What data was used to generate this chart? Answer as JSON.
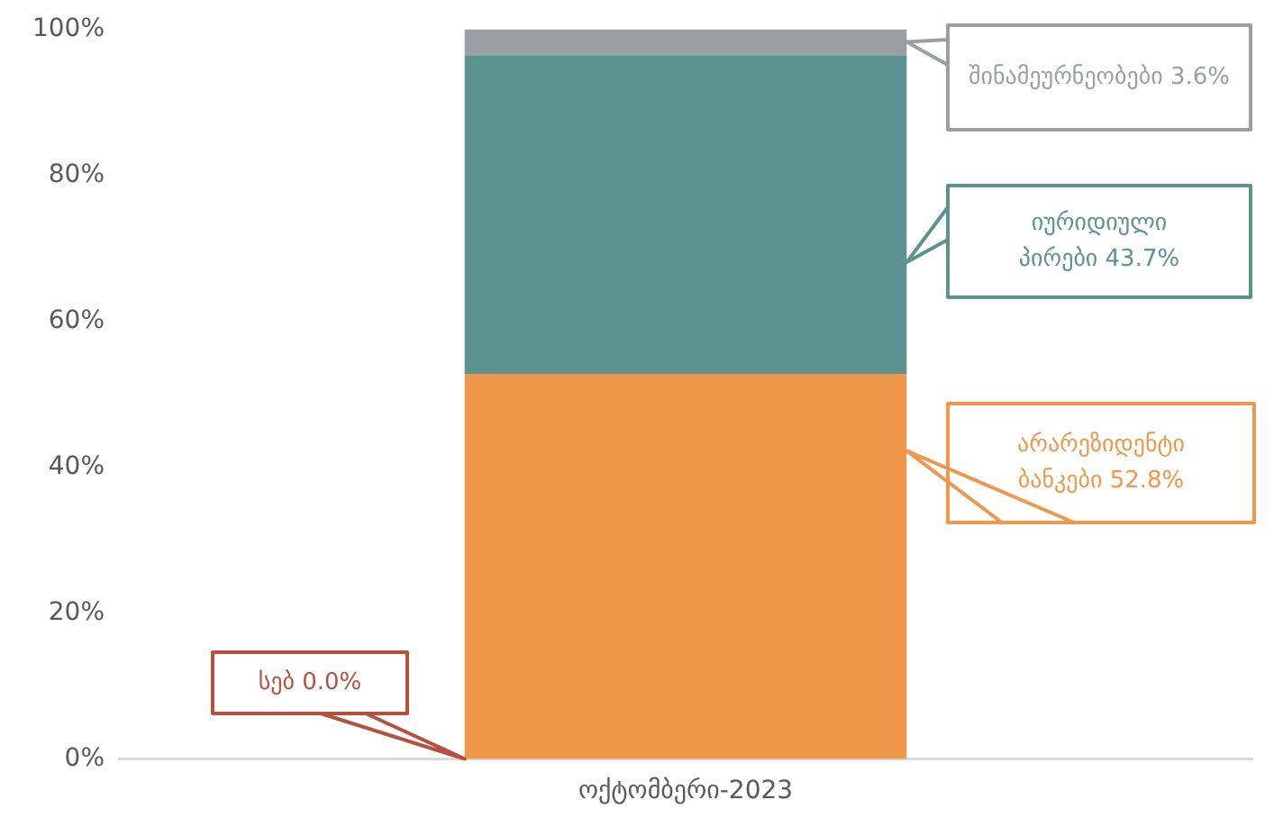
{
  "chart_data": {
    "type": "bar",
    "stacked": true,
    "categories": [
      "ოქტომბერი-2023"
    ],
    "series": [
      {
        "name": "სებ",
        "color": "#b5513f",
        "values": [
          0.0
        ],
        "value_labels": [
          "0.0%"
        ]
      },
      {
        "name": "არარეზიდენტი ბანკები",
        "color": "#ef984c",
        "values": [
          52.8
        ],
        "value_labels": [
          "52.8%"
        ]
      },
      {
        "name": "იურიდიული პირები",
        "color": "#5c9290",
        "values": [
          43.7
        ],
        "value_labels": [
          "43.7%"
        ]
      },
      {
        "name": "შინამეურნეობები",
        "color": "#9a9fa3",
        "values": [
          3.6
        ],
        "value_labels": [
          "3.6%"
        ]
      }
    ],
    "ylim": [
      0,
      100
    ],
    "yticks": [
      {
        "value": 0,
        "label": "0%"
      },
      {
        "value": 20,
        "label": "20%"
      },
      {
        "value": 40,
        "label": "40%"
      },
      {
        "value": 60,
        "label": "60%"
      },
      {
        "value": 80,
        "label": "80%"
      },
      {
        "value": 100,
        "label": "100%"
      }
    ],
    "grid": false,
    "legend": false
  }
}
